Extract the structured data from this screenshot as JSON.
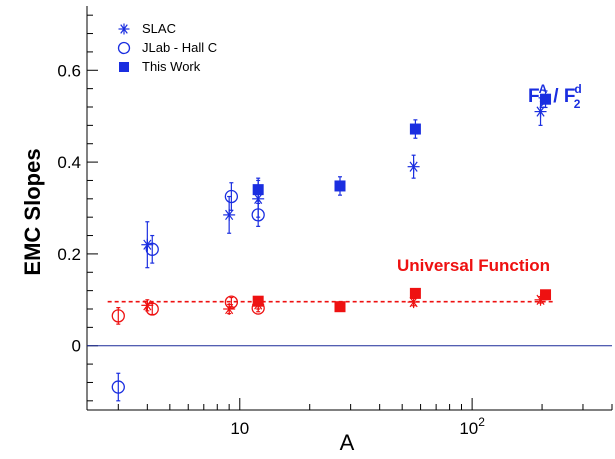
{
  "chart_data": {
    "type": "scatter",
    "xscale": "log",
    "xlim": [
      2.2,
      400
    ],
    "ylim": [
      -0.14,
      0.74
    ],
    "xlabel": "A",
    "ylabel": "EMC Slopes",
    "x_ticks": [
      {
        "value": 10,
        "base": "10",
        "exp": ""
      },
      {
        "value": 100,
        "base": "10",
        "exp": "2"
      }
    ],
    "y_ticks": [
      {
        "value": 0,
        "label": "0"
      },
      {
        "value": 0.2,
        "label": "0.2"
      },
      {
        "value": 0.4,
        "label": "0.4"
      },
      {
        "value": 0.6,
        "label": "0.6"
      }
    ],
    "zero_line": true,
    "grid": false,
    "legend_position": "top-left",
    "legend": [
      {
        "label": "SLAC",
        "marker": "star",
        "color": "#1a2ee0"
      },
      {
        "label": "JLab - Hall C",
        "marker": "open-circle",
        "color": "#1a2ee0"
      },
      {
        "label": "This Work",
        "marker": "square",
        "color": "#1a2ee0"
      }
    ],
    "series": [
      {
        "group": "F2A/F2d",
        "marker": "star",
        "color": "#1a2ee0",
        "points": [
          {
            "x": 4,
            "y": 0.22,
            "err": 0.05
          },
          {
            "x": 9,
            "y": 0.285,
            "err": 0.04
          },
          {
            "x": 12,
            "y": 0.32,
            "err": 0.04
          },
          {
            "x": 56,
            "y": 0.39,
            "err": 0.025
          },
          {
            "x": 197,
            "y": 0.51,
            "err": 0.03
          }
        ]
      },
      {
        "group": "F2A/F2d",
        "marker": "open-circle",
        "color": "#1a2ee0",
        "points": [
          {
            "x": 3,
            "y": -0.09,
            "err": 0.03
          },
          {
            "x": 4.2,
            "y": 0.21,
            "err": 0.03
          },
          {
            "x": 9.2,
            "y": 0.325,
            "err": 0.03
          },
          {
            "x": 12,
            "y": 0.285,
            "err": 0.025
          }
        ]
      },
      {
        "group": "F2A/F2d",
        "marker": "square",
        "color": "#1a2ee0",
        "points": [
          {
            "x": 12,
            "y": 0.34,
            "err": 0.025
          },
          {
            "x": 27,
            "y": 0.348,
            "err": 0.02
          },
          {
            "x": 57,
            "y": 0.472,
            "err": 0.02
          },
          {
            "x": 207,
            "y": 0.537,
            "err": 0.018
          }
        ]
      },
      {
        "group": "Universal Function",
        "marker": "star",
        "color": "#ee1111",
        "points": [
          {
            "x": 4,
            "y": 0.088,
            "err": 0.012
          },
          {
            "x": 9,
            "y": 0.08,
            "err": 0.01
          },
          {
            "x": 12,
            "y": 0.09,
            "err": 0.01
          },
          {
            "x": 56,
            "y": 0.095,
            "err": 0.008
          },
          {
            "x": 197,
            "y": 0.1,
            "err": 0.007
          }
        ]
      },
      {
        "group": "Universal Function",
        "marker": "open-circle",
        "color": "#ee1111",
        "points": [
          {
            "x": 3,
            "y": 0.065,
            "err": 0.018
          },
          {
            "x": 4.2,
            "y": 0.08,
            "err": 0.012
          },
          {
            "x": 9.2,
            "y": 0.095,
            "err": 0.01
          },
          {
            "x": 12,
            "y": 0.082,
            "err": 0.008
          }
        ]
      },
      {
        "group": "Universal Function",
        "marker": "square",
        "color": "#ee1111",
        "points": [
          {
            "x": 12,
            "y": 0.097,
            "err": 0.006
          },
          {
            "x": 27,
            "y": 0.085,
            "err": 0.005
          },
          {
            "x": 57,
            "y": 0.114,
            "err": 0.006
          },
          {
            "x": 207,
            "y": 0.111,
            "err": 0.005
          }
        ]
      }
    ],
    "fit_line": {
      "y": 0.096,
      "x_from": 2.7,
      "x_to": 225,
      "color": "#ee1111",
      "style": "dashed"
    },
    "annotations": {
      "universal": {
        "text": "Universal Function",
        "color": "#ee1111"
      },
      "ratio": {
        "F": "F",
        "num_sup": "A",
        "num_sub": "2",
        "sep": " / ",
        "den_sup": "d",
        "den_sub": "2",
        "color": "#1a2ee0"
      }
    }
  }
}
